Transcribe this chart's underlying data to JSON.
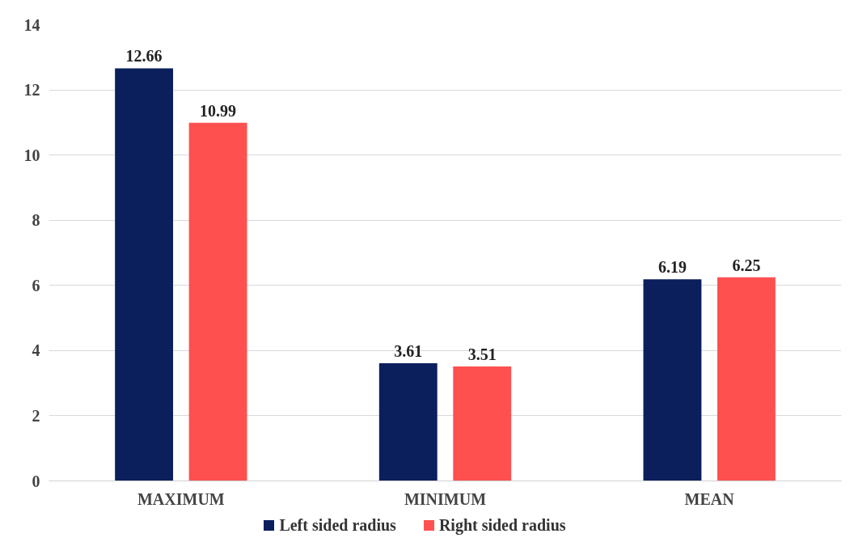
{
  "chart_data": {
    "type": "bar",
    "categories": [
      "MAXIMUM",
      "MINIMUM",
      "MEAN"
    ],
    "series": [
      {
        "name": "Left sided radius",
        "color": "#0b1f5c",
        "values": [
          12.66,
          3.61,
          6.19
        ]
      },
      {
        "name": "Right sided radius",
        "color": "#ff5050",
        "values": [
          10.99,
          3.51,
          6.25
        ]
      }
    ],
    "ylim": [
      0,
      14
    ],
    "yticks": [
      0,
      2,
      4,
      6,
      8,
      10,
      12,
      14
    ],
    "grid": "y",
    "legend": "bottom",
    "data_labels": true
  }
}
